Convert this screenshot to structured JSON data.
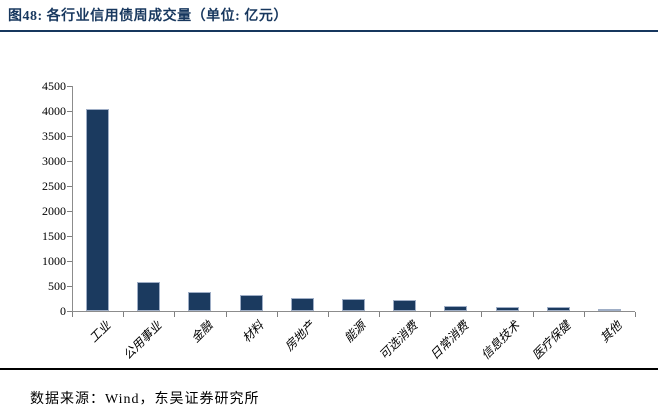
{
  "header": {
    "title": "图48:  各行业信用债周成交量（单位: 亿元）"
  },
  "footer": {
    "source": "数据来源：Wind，东吴证券研究所"
  },
  "colors": {
    "accent_navy": "#17375E",
    "bar_fill": "#1B3A5F",
    "bar_border": "#9FAEC6",
    "axis_gray": "#8C8C8C",
    "footer_rule_black": "#000000",
    "text_black": "#000000"
  },
  "chart_data": {
    "type": "bar",
    "title": "各行业信用债周成交量",
    "unit": "亿元",
    "categories": [
      "工业",
      "公用事业",
      "金融",
      "材料",
      "房地产",
      "能源",
      "可选消费",
      "日常消费",
      "信息技术",
      "医疗保健",
      "其他"
    ],
    "values": [
      4040,
      570,
      370,
      310,
      250,
      230,
      215,
      100,
      85,
      75,
      40
    ],
    "xlabel": "",
    "ylabel": "",
    "ylim": [
      0,
      4500
    ],
    "ytick_step": 500,
    "yticks": [
      0,
      500,
      1000,
      1500,
      2000,
      2500,
      3000,
      3500,
      4000,
      4500
    ],
    "grid": false,
    "legend_position": "none",
    "bar_color": "#1B3A5F"
  }
}
